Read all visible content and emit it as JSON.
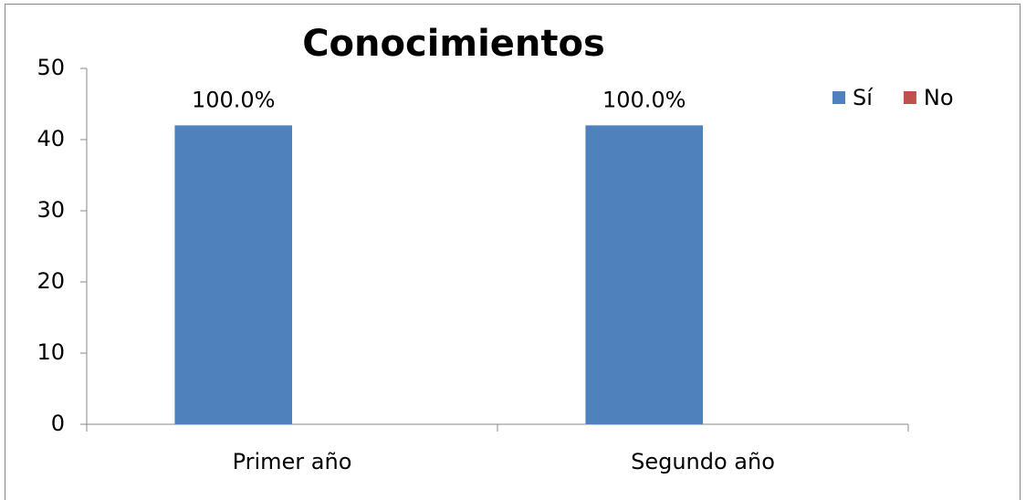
{
  "chart_data": {
    "type": "bar",
    "title": "Conocimientos",
    "categories": [
      "Primer año",
      "Segundo año"
    ],
    "series": [
      {
        "name": "Sí",
        "color": "#4f81bd",
        "values": [
          42,
          42
        ],
        "value_labels": [
          "100.0%",
          "100.0%"
        ]
      },
      {
        "name": "No",
        "color": "#c0504d",
        "values": [
          0,
          0
        ]
      }
    ],
    "ylim": [
      0,
      50
    ],
    "yticks": [
      0,
      10,
      20,
      30,
      40,
      50
    ],
    "grid": false,
    "legend": "top-right"
  }
}
